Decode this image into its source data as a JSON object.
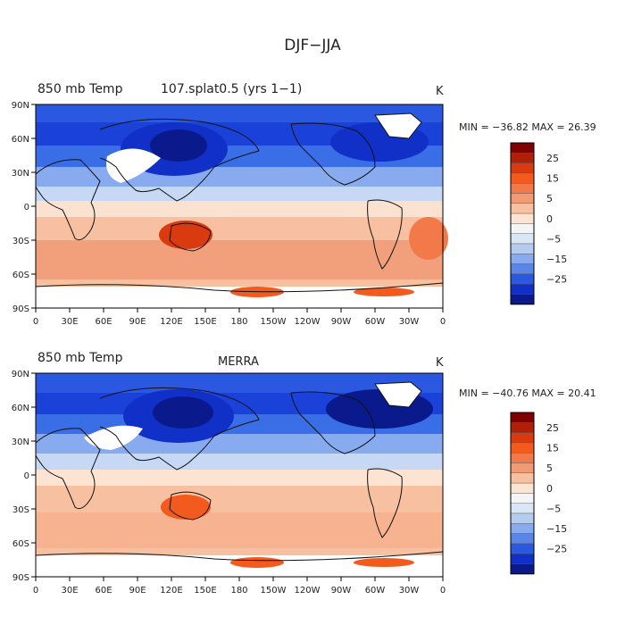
{
  "figure": {
    "title": "DJF−JJA"
  },
  "colorbar": {
    "colors": [
      "#800000",
      "#b02008",
      "#d93a10",
      "#f25a1e",
      "#f27a4a",
      "#f29a74",
      "#f7c0a0",
      "#fde4d2",
      "#f5f5f5",
      "#d8e6f7",
      "#b4ccf0",
      "#88aaee",
      "#5a86e8",
      "#2a58e0",
      "#1030c8",
      "#0a1a8c"
    ],
    "labels": [
      "25",
      "15",
      "5",
      "0",
      "−5",
      "−15",
      "−25"
    ]
  },
  "axes": {
    "lat_labels": [
      "90N",
      "60N",
      "30N",
      "0",
      "30S",
      "60S",
      "90S"
    ],
    "lon_labels": [
      "0",
      "30E",
      "60E",
      "90E",
      "120E",
      "150E",
      "180",
      "150W",
      "120W",
      "90W",
      "60W",
      "30W",
      "0"
    ]
  },
  "panels": [
    {
      "var_label": "850 mb Temp",
      "case_label": "107.splat0.5 (yrs 1−1)",
      "units": "K",
      "stats": "MIN = −36.82  MAX =  26.39"
    },
    {
      "var_label": "850 mb Temp",
      "case_label": "MERRA",
      "units": "K",
      "stats": "MIN = −40.76  MAX =  20.41"
    }
  ],
  "colors": {
    "ocean_mid": "#f2f2f2",
    "coast": "#111111"
  }
}
